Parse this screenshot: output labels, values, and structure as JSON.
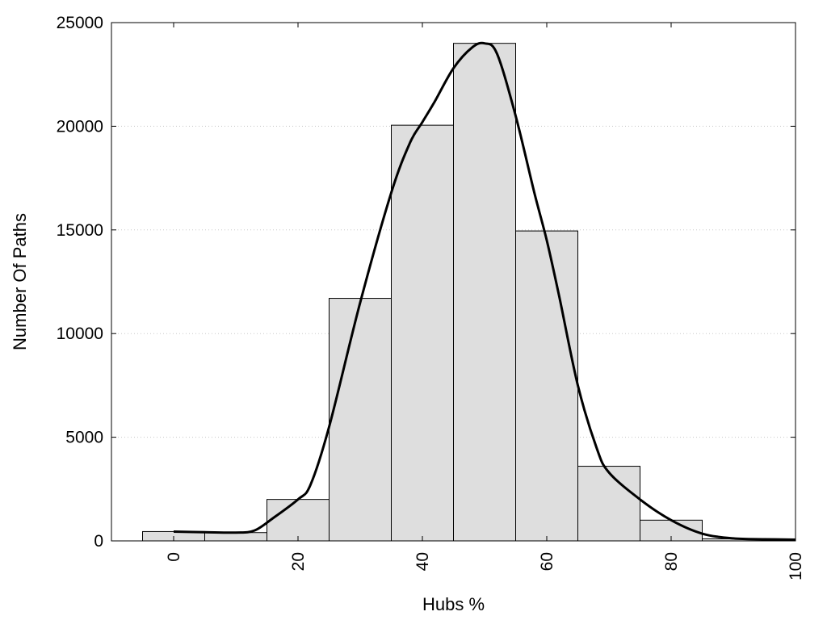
{
  "chart_data": {
    "type": "bar",
    "title": "",
    "xlabel": "Hubs %",
    "ylabel": "Number Of Paths",
    "xlim": [
      -10,
      100
    ],
    "ylim": [
      0,
      25000
    ],
    "x_ticks": [
      0,
      20,
      40,
      60,
      80,
      100
    ],
    "y_ticks": [
      0,
      5000,
      10000,
      15000,
      20000,
      25000
    ],
    "grid": "horizontal-dotted",
    "legend": "none",
    "bin_width": 10,
    "bars": [
      {
        "x": 0,
        "value": 450
      },
      {
        "x": 10,
        "value": 400
      },
      {
        "x": 20,
        "value": 2000
      },
      {
        "x": 30,
        "value": 11700
      },
      {
        "x": 40,
        "value": 20050
      },
      {
        "x": 50,
        "value": 24000
      },
      {
        "x": 60,
        "value": 14950
      },
      {
        "x": 70,
        "value": 3600
      },
      {
        "x": 80,
        "value": 1000
      },
      {
        "x": 90,
        "value": 100
      }
    ],
    "curve": {
      "x": [
        0,
        5,
        10,
        13,
        16,
        20,
        22,
        25,
        30,
        35,
        38,
        40,
        42,
        45,
        48,
        50,
        52,
        55,
        58,
        60,
        62,
        65,
        68,
        70,
        75,
        80,
        85,
        90,
        95,
        100
      ],
      "y": [
        450,
        420,
        400,
        500,
        1100,
        2000,
        2700,
        5500,
        11500,
        16800,
        19200,
        20200,
        21200,
        22800,
        23800,
        24000,
        23500,
        20500,
        16800,
        14500,
        11800,
        7500,
        4500,
        3300,
        2000,
        1000,
        350,
        120,
        80,
        60
      ]
    },
    "colors": {
      "bar_fill": "#dedede",
      "bar_stroke": "#000000",
      "curve": "#000000",
      "grid": "#c8c8c8"
    }
  }
}
